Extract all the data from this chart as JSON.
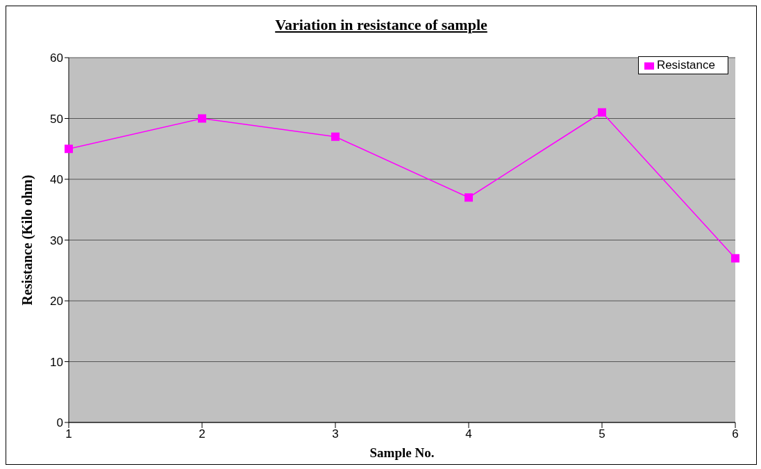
{
  "chart_data": {
    "type": "line",
    "title": "Variation in resistance of sample",
    "xlabel": "Sample No.",
    "ylabel": "Resistance (Kilo ohm)",
    "categories": [
      "1",
      "2",
      "3",
      "4",
      "5",
      "6"
    ],
    "series": [
      {
        "name": "Resistance",
        "color": "#ff00ff",
        "values": [
          45,
          50,
          47,
          37,
          51,
          27
        ]
      }
    ],
    "ylim": [
      0,
      60
    ],
    "yticks": [
      0,
      10,
      20,
      30,
      40,
      50,
      60
    ],
    "grid": "y",
    "legend": "top right",
    "marker": "square",
    "line_style": "solid"
  }
}
